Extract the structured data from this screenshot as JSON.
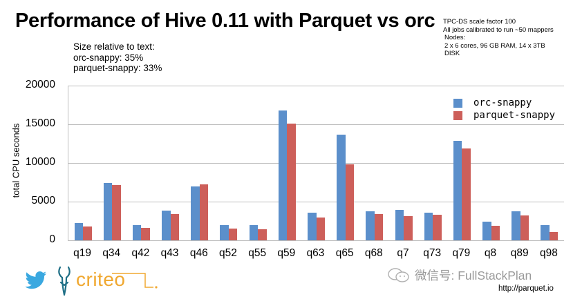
{
  "title": "Performance of Hive 0.11 with Parquet vs orc",
  "size_note": {
    "heading": "Size relative to text:",
    "lines": [
      "orc-snappy: 35%",
      "parquet-snappy: 33%"
    ]
  },
  "setup_note": {
    "lines": [
      "TPC-DS scale factor 100",
      "All jobs calibrated to run ~50 mappers",
      "Nodes:",
      "2 x 6 cores, 96 GB RAM, 14 x 3TB",
      "DISK"
    ]
  },
  "footer": {
    "brand": "criteo",
    "brand_suffix": ".",
    "watermark": "微信号: FullStackPlan",
    "url": "http://parquet.io"
  },
  "colors": {
    "orc": "#5b8fcb",
    "parquet": "#cd5f5a",
    "criteo": "#f0a830",
    "twitter": "#3aa8e0"
  },
  "chart_data": {
    "type": "bar",
    "title": "Performance of Hive 0.11 with Parquet vs orc",
    "xlabel": "",
    "ylabel": "total CPU seconds",
    "ylim": [
      0,
      20000
    ],
    "yticks": [
      0,
      5000,
      10000,
      15000,
      20000
    ],
    "grid": true,
    "legend_position": "upper right",
    "categories": [
      "q19",
      "q34",
      "q42",
      "q43",
      "q46",
      "q52",
      "q55",
      "q59",
      "q63",
      "q65",
      "q68",
      "q7",
      "q73",
      "q79",
      "q8",
      "q89",
      "q98"
    ],
    "series": [
      {
        "name": "orc-snappy",
        "color": "#5b8fcb",
        "values": [
          2200,
          7400,
          2000,
          3800,
          7000,
          1950,
          2000,
          16800,
          3600,
          13700,
          3750,
          3950,
          3600,
          12900,
          2450,
          3750,
          1950
        ]
      },
      {
        "name": "parquet-snappy",
        "color": "#cd5f5a",
        "values": [
          1800,
          7100,
          1650,
          3400,
          7200,
          1550,
          1400,
          15100,
          2950,
          9800,
          3400,
          3100,
          3300,
          11850,
          1850,
          3200,
          1100
        ]
      }
    ]
  }
}
